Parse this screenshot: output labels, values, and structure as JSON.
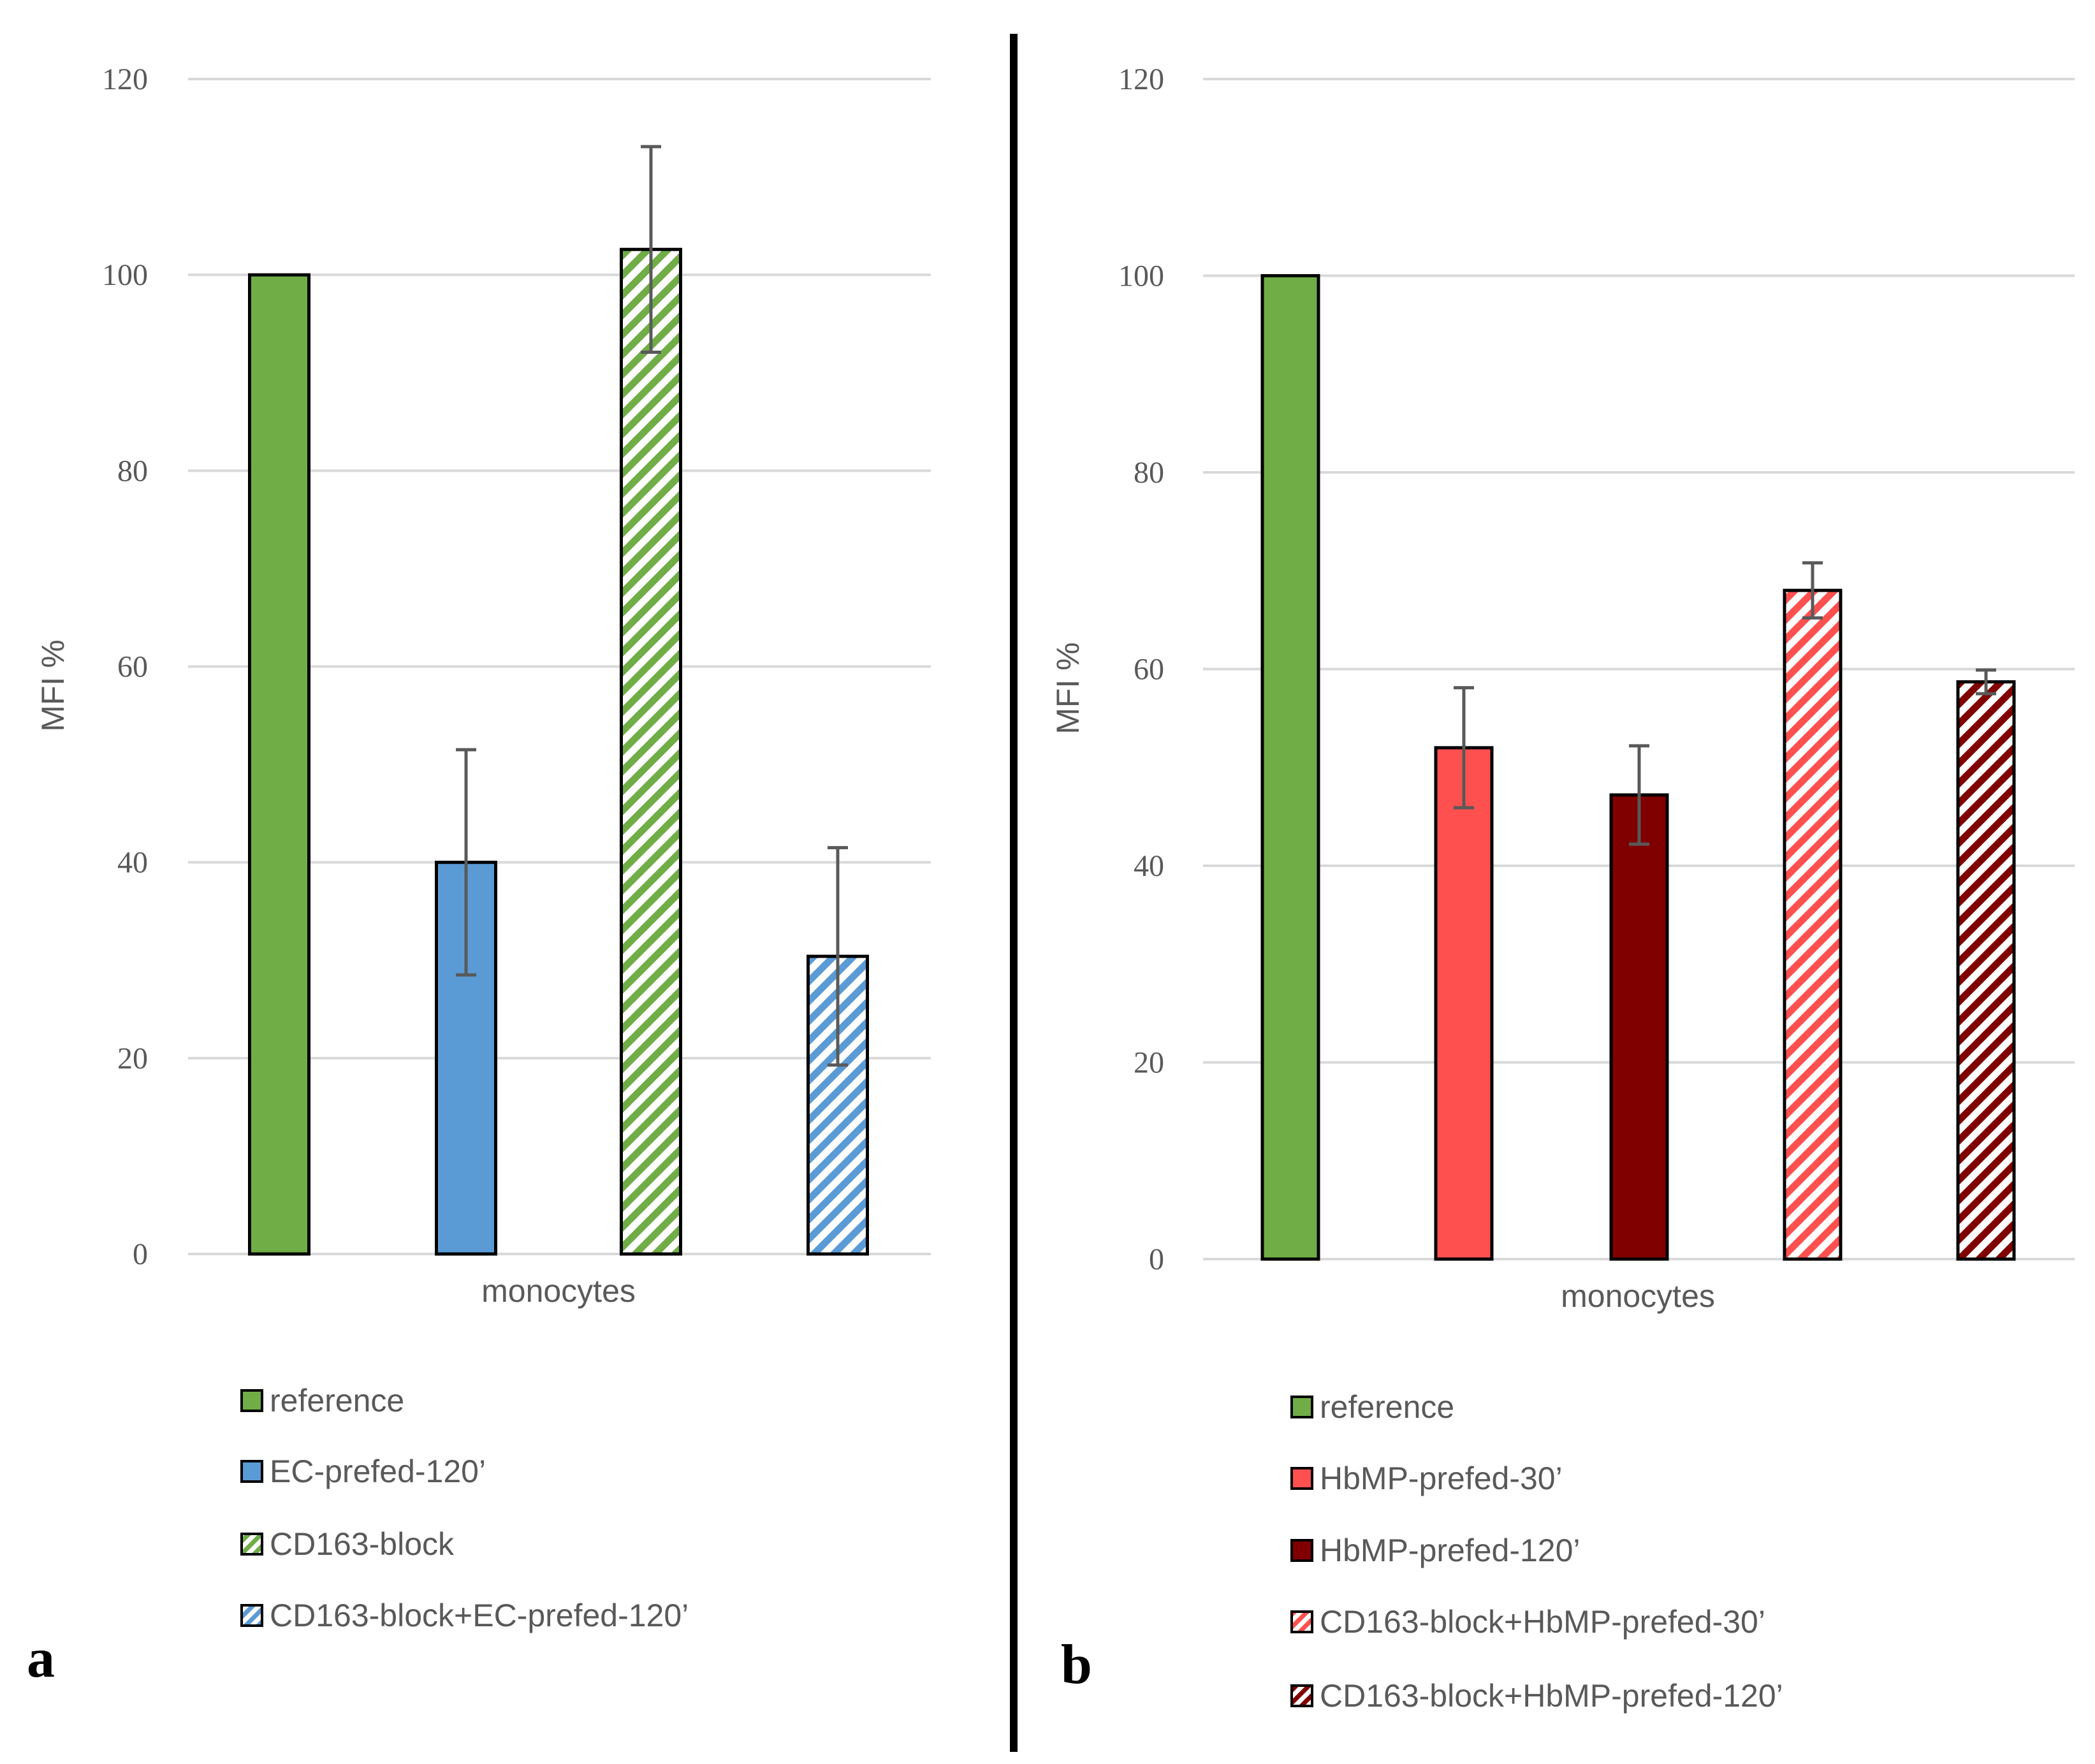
{
  "chart_data": [
    {
      "type": "bar",
      "panel_label": "a",
      "title": "",
      "xlabel": "monocytes",
      "ylabel": "MFI %",
      "ylim": [
        0,
        120
      ],
      "yticks": [
        "0",
        "20",
        "40",
        "60",
        "80",
        "100",
        "120"
      ],
      "grid": true,
      "legend_placement": "bottom",
      "series": [
        {
          "name": "reference",
          "value": 100,
          "error": 0,
          "color": "#70AD47",
          "hatched": false
        },
        {
          "name": "EC-prefed-120’",
          "value": 40,
          "error": 11.5,
          "color": "#5B9BD5",
          "hatched": false
        },
        {
          "name": "CD163-block",
          "value": 102.6,
          "error": 10.5,
          "color": "#70AD47",
          "hatched": true
        },
        {
          "name": "CD163-block+EC-prefed-120’",
          "value": 30.4,
          "error": 11.1,
          "color": "#5B9BD5",
          "hatched": true
        }
      ]
    },
    {
      "type": "bar",
      "panel_label": "b",
      "title": "",
      "xlabel": "monocytes",
      "ylabel": "MFI %",
      "ylim": [
        0,
        120
      ],
      "yticks": [
        "0",
        "20",
        "40",
        "60",
        "80",
        "100",
        "120"
      ],
      "grid": true,
      "legend_placement": "bottom",
      "series": [
        {
          "name": "reference",
          "value": 100,
          "error": 0,
          "color": "#70AD47",
          "hatched": false
        },
        {
          "name": "HbMP-prefed-30’",
          "value": 52,
          "error": 6.1,
          "color": "#FF5050",
          "hatched": false
        },
        {
          "name": "HbMP-prefed-120’",
          "value": 47.2,
          "error": 5,
          "color": "#800000",
          "hatched": false
        },
        {
          "name": "CD163-block+HbMP-prefed-30’",
          "value": 68,
          "error": 2.8,
          "color": "#FF5050",
          "hatched": true
        },
        {
          "name": "CD163-block+HbMP-prefed-120’",
          "value": 58.7,
          "error": 1.2,
          "color": "#800000",
          "hatched": true
        }
      ]
    }
  ]
}
